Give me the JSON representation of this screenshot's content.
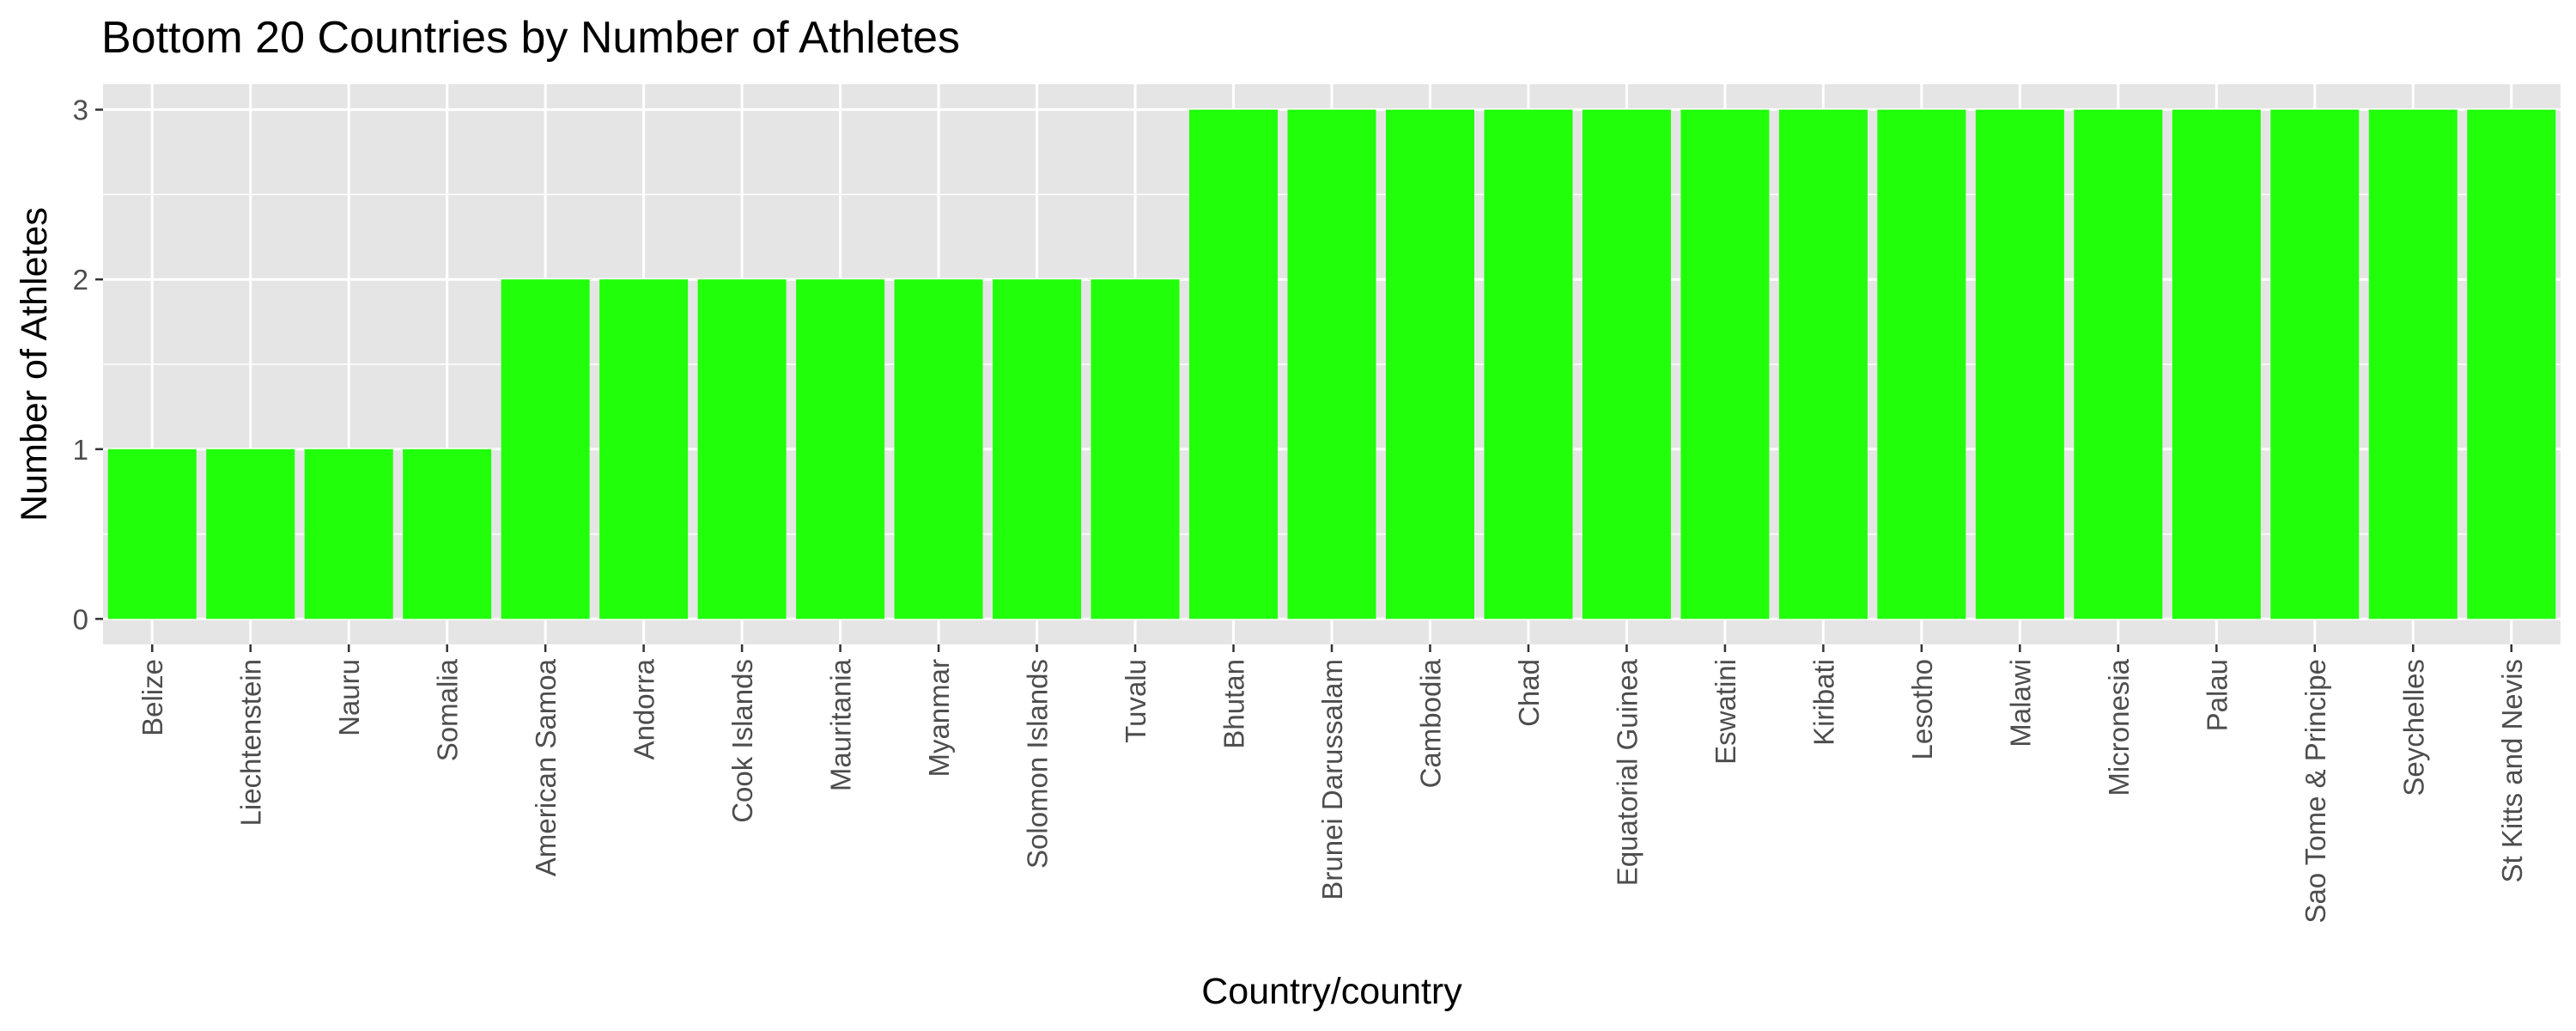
{
  "chart_data": {
    "type": "bar",
    "title": "Bottom 20 Countries by Number of Athletes",
    "xlabel": "Country/country",
    "ylabel": "Number of Athletes",
    "categories": [
      "Belize",
      "Liechtenstein",
      "Nauru",
      "Somalia",
      "American Samoa",
      "Andorra",
      "Cook Islands",
      "Mauritania",
      "Myanmar",
      "Solomon Islands",
      "Tuvalu",
      "Bhutan",
      "Brunei Darussalam",
      "Cambodia",
      "Chad",
      "Equatorial Guinea",
      "Eswatini",
      "Kiribati",
      "Lesotho",
      "Malawi",
      "Micronesia",
      "Palau",
      "Sao Tome & Principe",
      "Seychelles",
      "St Kitts and Nevis"
    ],
    "values": [
      1,
      1,
      1,
      1,
      2,
      2,
      2,
      2,
      2,
      2,
      2,
      3,
      3,
      3,
      3,
      3,
      3,
      3,
      3,
      3,
      3,
      3,
      3,
      3,
      3
    ],
    "ylim": [
      -0.15,
      3.15
    ],
    "yticks": [
      "0",
      "1",
      "2",
      "3"
    ],
    "grid": true,
    "bar_color": "#22FF0A",
    "panel_color": "#E5E5E5",
    "grid_color": "#FFFFFF"
  }
}
